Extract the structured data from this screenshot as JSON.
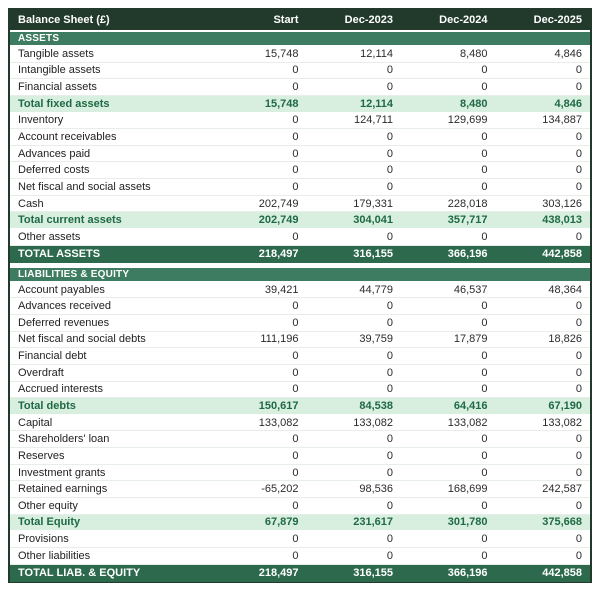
{
  "colors": {
    "header_bg": "#223a2c",
    "section_bg": "#3e7c61",
    "total_bg": "#2d6a4d",
    "subtotal_bg": "#d8eede",
    "subtotal_text": "#1e6a44"
  },
  "table": {
    "title": "Balance Sheet (£)",
    "columns": [
      "Start",
      "Dec-2023",
      "Dec-2024",
      "Dec-2025"
    ],
    "rows": [
      {
        "type": "section",
        "label": "ASSETS"
      },
      {
        "type": "line",
        "label": "Tangible assets",
        "values": [
          "15,748",
          "12,114",
          "8,480",
          "4,846"
        ]
      },
      {
        "type": "line",
        "label": "Intangible assets",
        "values": [
          "0",
          "0",
          "0",
          "0"
        ]
      },
      {
        "type": "line",
        "label": "Financial assets",
        "values": [
          "0",
          "0",
          "0",
          "0"
        ]
      },
      {
        "type": "subtotal",
        "label": "Total fixed assets",
        "values": [
          "15,748",
          "12,114",
          "8,480",
          "4,846"
        ]
      },
      {
        "type": "line",
        "label": "Inventory",
        "values": [
          "0",
          "124,711",
          "129,699",
          "134,887"
        ]
      },
      {
        "type": "line",
        "label": "Account receivables",
        "values": [
          "0",
          "0",
          "0",
          "0"
        ]
      },
      {
        "type": "line",
        "label": "Advances paid",
        "values": [
          "0",
          "0",
          "0",
          "0"
        ]
      },
      {
        "type": "line",
        "label": "Deferred costs",
        "values": [
          "0",
          "0",
          "0",
          "0"
        ]
      },
      {
        "type": "line",
        "label": "Net fiscal and social assets",
        "values": [
          "0",
          "0",
          "0",
          "0"
        ]
      },
      {
        "type": "line",
        "label": "Cash",
        "values": [
          "202,749",
          "179,331",
          "228,018",
          "303,126"
        ]
      },
      {
        "type": "subtotal",
        "label": "Total current assets",
        "values": [
          "202,749",
          "304,041",
          "357,717",
          "438,013"
        ]
      },
      {
        "type": "line",
        "label": "Other assets",
        "values": [
          "0",
          "0",
          "0",
          "0"
        ]
      },
      {
        "type": "total",
        "label": "TOTAL ASSETS",
        "values": [
          "218,497",
          "316,155",
          "366,196",
          "442,858"
        ]
      },
      {
        "type": "gap",
        "label": ""
      },
      {
        "type": "section",
        "label": "LIABILITIES & EQUITY"
      },
      {
        "type": "line",
        "label": "Account payables",
        "values": [
          "39,421",
          "44,779",
          "46,537",
          "48,364"
        ]
      },
      {
        "type": "line",
        "label": "Advances received",
        "values": [
          "0",
          "0",
          "0",
          "0"
        ]
      },
      {
        "type": "line",
        "label": "Deferred revenues",
        "values": [
          "0",
          "0",
          "0",
          "0"
        ]
      },
      {
        "type": "line",
        "label": "Net fiscal and social debts",
        "values": [
          "111,196",
          "39,759",
          "17,879",
          "18,826"
        ]
      },
      {
        "type": "line",
        "label": "Financial debt",
        "values": [
          "0",
          "0",
          "0",
          "0"
        ]
      },
      {
        "type": "line",
        "label": "Overdraft",
        "values": [
          "0",
          "0",
          "0",
          "0"
        ]
      },
      {
        "type": "line",
        "label": "Accrued interests",
        "values": [
          "0",
          "0",
          "0",
          "0"
        ]
      },
      {
        "type": "subtotal",
        "label": "Total debts",
        "values": [
          "150,617",
          "84,538",
          "64,416",
          "67,190"
        ]
      },
      {
        "type": "line",
        "label": "Capital",
        "values": [
          "133,082",
          "133,082",
          "133,082",
          "133,082"
        ]
      },
      {
        "type": "line",
        "label": "Shareholders' loan",
        "values": [
          "0",
          "0",
          "0",
          "0"
        ]
      },
      {
        "type": "line",
        "label": "Reserves",
        "values": [
          "0",
          "0",
          "0",
          "0"
        ]
      },
      {
        "type": "line",
        "label": "Investment grants",
        "values": [
          "0",
          "0",
          "0",
          "0"
        ]
      },
      {
        "type": "line",
        "label": "Retained earnings",
        "values": [
          "-65,202",
          "98,536",
          "168,699",
          "242,587"
        ]
      },
      {
        "type": "line",
        "label": "Other equity",
        "values": [
          "0",
          "0",
          "0",
          "0"
        ]
      },
      {
        "type": "subtotal",
        "label": "Total Equity",
        "values": [
          "67,879",
          "231,617",
          "301,780",
          "375,668"
        ]
      },
      {
        "type": "line",
        "label": "Provisions",
        "values": [
          "0",
          "0",
          "0",
          "0"
        ]
      },
      {
        "type": "line",
        "label": "Other liabilities",
        "values": [
          "0",
          "0",
          "0",
          "0"
        ]
      },
      {
        "type": "total",
        "label": "TOTAL LIAB. & EQUITY",
        "values": [
          "218,497",
          "316,155",
          "366,196",
          "442,858"
        ]
      }
    ]
  }
}
